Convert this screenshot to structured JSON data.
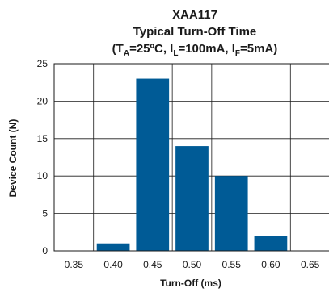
{
  "chart_data": {
    "type": "bar",
    "title": "XAA117",
    "subtitle": "Typical Turn-Off Time",
    "conditions": {
      "open": "(T",
      "ta_sub": "A",
      "ta_rest": "=25ºC, I",
      "il_sub": "L",
      "il_rest": "=100mA, I",
      "if_sub": "F",
      "if_rest": "=5mA)"
    },
    "xlabel": "Turn-Off (ms)",
    "ylabel": "Device Count (N)",
    "categories": [
      "0.35",
      "0.40",
      "0.45",
      "0.50",
      "0.55",
      "0.60",
      "0.65"
    ],
    "values": [
      0,
      1,
      23,
      14,
      10,
      2,
      0
    ],
    "yticks": [
      "0",
      "5",
      "10",
      "15",
      "20",
      "25"
    ],
    "ylim": [
      0,
      25
    ],
    "grid": true,
    "bar_color": "#005b96"
  }
}
